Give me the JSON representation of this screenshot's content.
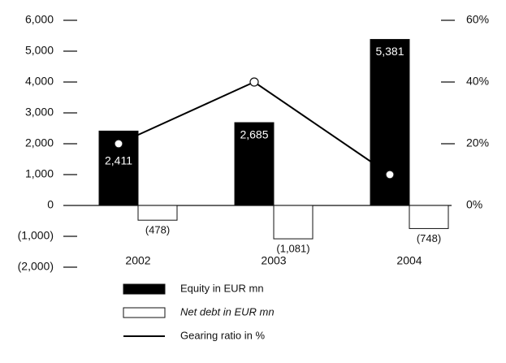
{
  "chart_data": {
    "type": "bar",
    "categories": [
      "2002",
      "2003",
      "2004"
    ],
    "series": [
      {
        "name": "Equity in EUR mn",
        "color": "#000000",
        "values": [
          2411,
          2685,
          5381
        ],
        "value_labels": [
          "2,411",
          "2,685",
          "5,381"
        ]
      },
      {
        "name": "Net debt in EUR mn",
        "color": "#ffffff",
        "values": [
          -478,
          -1081,
          -748
        ],
        "value_labels": [
          "(478)",
          "(1,081)",
          "(748)"
        ]
      },
      {
        "name": "Gearing ratio in %",
        "type": "line",
        "axis": "y2",
        "color": "#000000",
        "values": [
          20,
          40,
          10
        ]
      }
    ],
    "ylim": [
      -2000,
      6000
    ],
    "yticks": [
      {
        "value": -2000,
        "label": "(2,000)"
      },
      {
        "value": -1000,
        "label": "(1,000)"
      },
      0,
      {
        "value": 1000,
        "label": "1,000"
      },
      {
        "value": 2000,
        "label": "2,000"
      },
      {
        "value": 3000,
        "label": "3,000"
      },
      {
        "value": 4000,
        "label": "4,000"
      },
      {
        "value": 5000,
        "label": "5,000"
      },
      {
        "value": 6000,
        "label": "6,000"
      }
    ],
    "y2lim": [
      -20,
      60
    ],
    "y2ticks": [
      {
        "value": 0,
        "label": "0%"
      },
      {
        "value": 20,
        "label": "20%"
      },
      {
        "value": 40,
        "label": "40%"
      },
      {
        "value": 60,
        "label": "60%"
      }
    ]
  }
}
